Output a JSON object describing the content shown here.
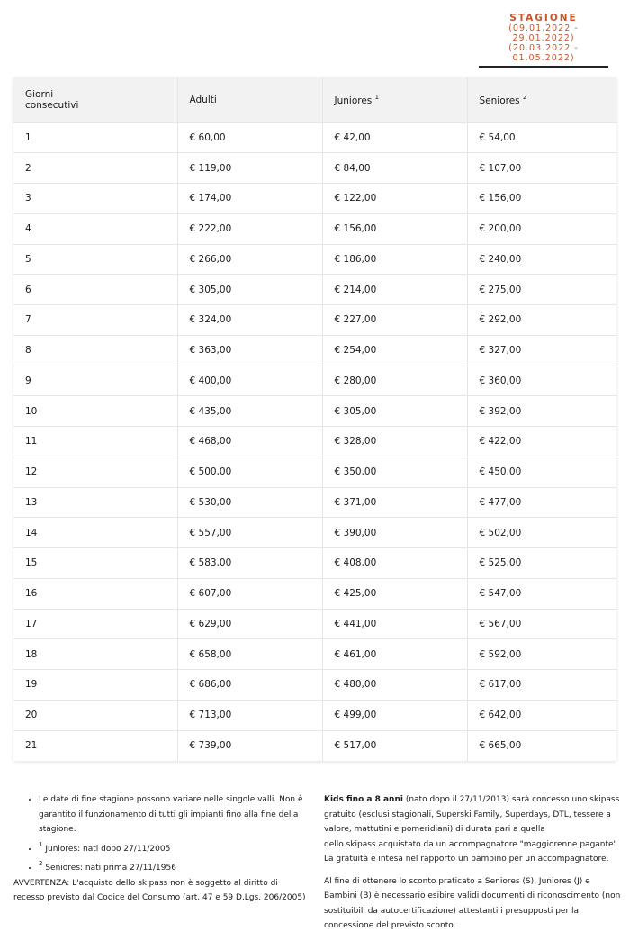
{
  "season": {
    "title": "STAGIONE",
    "ranges": [
      "(09.01.2022 - 29.01.2022)",
      "(20.03.2022 - 01.05.2022)"
    ],
    "accent": "#c8552a"
  },
  "table": {
    "headers": [
      {
        "label": "Giorni consecutivi",
        "sup": ""
      },
      {
        "label": "Adulti",
        "sup": ""
      },
      {
        "label": "Juniores",
        "sup": "1"
      },
      {
        "label": "Seniores",
        "sup": "2"
      }
    ],
    "rows": [
      [
        "1",
        "€ 60,00",
        "€ 42,00",
        "€ 54,00"
      ],
      [
        "2",
        "€ 119,00",
        "€ 84,00",
        "€ 107,00"
      ],
      [
        "3",
        "€ 174,00",
        "€ 122,00",
        "€ 156,00"
      ],
      [
        "4",
        "€ 222,00",
        "€ 156,00",
        "€ 200,00"
      ],
      [
        "5",
        "€ 266,00",
        "€ 186,00",
        "€ 240,00"
      ],
      [
        "6",
        "€ 305,00",
        "€ 214,00",
        "€ 275,00"
      ],
      [
        "7",
        "€ 324,00",
        "€ 227,00",
        "€ 292,00"
      ],
      [
        "8",
        "€ 363,00",
        "€ 254,00",
        "€ 327,00"
      ],
      [
        "9",
        "€ 400,00",
        "€ 280,00",
        "€ 360,00"
      ],
      [
        "10",
        "€ 435,00",
        "€ 305,00",
        "€ 392,00"
      ],
      [
        "11",
        "€ 468,00",
        "€ 328,00",
        "€ 422,00"
      ],
      [
        "12",
        "€ 500,00",
        "€ 350,00",
        "€ 450,00"
      ],
      [
        "13",
        "€ 530,00",
        "€ 371,00",
        "€ 477,00"
      ],
      [
        "14",
        "€ 557,00",
        "€ 390,00",
        "€ 502,00"
      ],
      [
        "15",
        "€ 583,00",
        "€ 408,00",
        "€ 525,00"
      ],
      [
        "16",
        "€ 607,00",
        "€ 425,00",
        "€ 547,00"
      ],
      [
        "17",
        "€ 629,00",
        "€ 441,00",
        "€ 567,00"
      ],
      [
        "18",
        "€ 658,00",
        "€ 461,00",
        "€ 592,00"
      ],
      [
        "19",
        "€ 686,00",
        "€ 480,00",
        "€ 617,00"
      ],
      [
        "20",
        "€ 713,00",
        "€ 499,00",
        "€ 642,00"
      ],
      [
        "21",
        "€ 739,00",
        "€ 517,00",
        "€ 665,00"
      ]
    ]
  },
  "notes": {
    "bullets": [
      {
        "sup": "",
        "text": "Le date di fine stagione possono variare nelle singole valli. Non è garantito il funzionamento di tutti gli impianti fino alla fine della stagione."
      },
      {
        "sup": "1",
        "text": " Juniores: nati dopo 27/11/2005"
      },
      {
        "sup": "2",
        "text": " Seniores: nati prima 27/11/1956"
      }
    ],
    "warning": "AVVERTENZA: L'acquisto dello skipass non è soggetto al diritto di recesso previsto dal Codice del Consumo (art. 47 e 59 D.Lgs. 206/2005)",
    "kids_bold": "Kids fino a 8 anni",
    "kids_text1": " (nato dopo il 27/11/2013) sarà concesso uno skipass gratuito (esclusi stagionali, Superski Family, Superdays, DTL, tessere a valore, mattutini e pomeridiani) di durata pari a quella",
    "kids_text2": "dello skipass acquistato da un accompagnatore \"maggiorenne pagante\". La gratuità è intesa nel rapporto un bambino per un accompagnatore.",
    "discount": "Al fine di ottenere lo sconto praticato a Seniores (S), Juniores (J) e Bambini (B) è necessario esibire validi documenti di riconoscimento (non sostituibili da autocertificazione) attestanti i presupposti per la concessione del previsto sconto."
  }
}
